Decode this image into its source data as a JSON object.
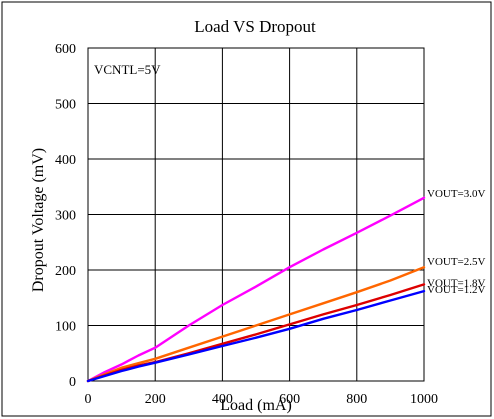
{
  "chart_data": {
    "type": "line",
    "title": "Load VS Dropout",
    "xlabel": "Load (mA)",
    "ylabel": "Dropout Voltage (mV)",
    "annotation": "VCNTL=5V",
    "xlim": [
      0,
      1000
    ],
    "ylim": [
      0,
      600
    ],
    "x_ticks": [
      0,
      200,
      400,
      600,
      800,
      1000
    ],
    "y_ticks": [
      0,
      100,
      200,
      300,
      400,
      500,
      600
    ],
    "grid": true,
    "legend": "inline-right",
    "series": [
      {
        "name": "VOUT=3.0V",
        "color": "#ff00ff",
        "x": [
          0,
          50,
          100,
          150,
          200,
          300,
          400,
          500,
          600,
          700,
          800,
          900,
          1000
        ],
        "y": [
          0,
          16,
          30,
          46,
          60,
          100,
          137,
          170,
          205,
          237,
          267,
          298,
          330
        ]
      },
      {
        "name": "VOUT=2.5V",
        "color": "#ff6600",
        "x": [
          0,
          50,
          100,
          150,
          200,
          300,
          400,
          500,
          600,
          700,
          800,
          900,
          1000
        ],
        "y": [
          0,
          12,
          24,
          32,
          40,
          60,
          80,
          100,
          120,
          140,
          160,
          181,
          205
        ]
      },
      {
        "name": "VOUT=1.8V",
        "color": "#dd0000",
        "x": [
          0,
          50,
          100,
          150,
          200,
          300,
          400,
          500,
          600,
          700,
          800,
          900,
          1000
        ],
        "y": [
          0,
          10,
          20,
          28,
          34,
          50,
          67,
          84,
          102,
          120,
          137,
          155,
          174
        ]
      },
      {
        "name": "VOUT=1.2V",
        "color": "#0000ff",
        "x": [
          0,
          50,
          100,
          150,
          200,
          300,
          400,
          500,
          600,
          700,
          800,
          900,
          1000
        ],
        "y": [
          0,
          9,
          18,
          26,
          33,
          48,
          63,
          78,
          94,
          112,
          128,
          145,
          162
        ]
      }
    ]
  }
}
